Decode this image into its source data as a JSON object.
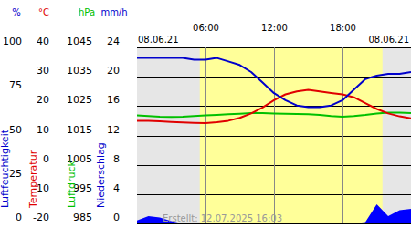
{
  "chart_data": {
    "type": "line",
    "date_left": "08.06.21",
    "date_right": "08.06.21",
    "created": "Erstellt: 12.07.2025 16:03",
    "x": [
      0,
      1,
      2,
      3,
      4,
      5,
      6,
      7,
      8,
      9,
      10,
      11,
      12,
      13,
      14,
      15,
      16,
      17,
      18,
      19,
      20,
      21,
      22,
      23,
      24
    ],
    "xlim": [
      0,
      24
    ],
    "xticks": [
      {
        "value": 6,
        "label": "06:00"
      },
      {
        "value": 12,
        "label": "12:00"
      },
      {
        "value": 18,
        "label": "18:00"
      }
    ],
    "daylight": [
      5.5,
      21.5
    ],
    "grid": true,
    "axes": [
      {
        "unit": "%",
        "label": "Luftfeuchtigkeit",
        "color": "#0000cc",
        "lim": [
          0,
          100
        ],
        "ticks": [
          100,
          75,
          50,
          25,
          0
        ]
      },
      {
        "unit": "°C",
        "label": "Temperatur",
        "color": "#e00000",
        "lim": [
          -20,
          40
        ],
        "ticks": [
          40,
          30,
          20,
          10,
          0,
          -10,
          -20
        ]
      },
      {
        "unit": "hPa",
        "label": "Luftdruck",
        "color": "#00c000",
        "lim": [
          985,
          1045
        ],
        "ticks": [
          1045,
          1035,
          1025,
          1015,
          1005,
          995,
          985
        ]
      },
      {
        "unit": "mm/h",
        "label": "Niederschlag",
        "color": "#0000cc",
        "lim": [
          0,
          24
        ],
        "ticks": [
          24,
          20,
          16,
          12,
          8,
          4,
          0
        ]
      }
    ],
    "series": [
      {
        "axis": 3,
        "type": "area",
        "color": "#0000ff",
        "values": [
          0.4,
          1.0,
          0.8,
          0.3,
          0,
          0,
          0,
          0,
          0,
          0,
          0,
          0,
          0,
          0,
          0,
          0,
          0,
          0,
          0,
          0,
          0.2,
          2.6,
          1.0,
          1.8,
          2.0
        ]
      },
      {
        "axis": 2,
        "type": "line",
        "color": "#00c000",
        "values": [
          1021.8,
          1021.6,
          1021.4,
          1021.3,
          1021.4,
          1021.6,
          1021.8,
          1022.0,
          1022.2,
          1022.4,
          1022.6,
          1022.6,
          1022.5,
          1022.4,
          1022.3,
          1022.2,
          1022.0,
          1021.6,
          1021.4,
          1021.6,
          1022.0,
          1022.5,
          1022.8,
          1022.8,
          1022.6
        ]
      },
      {
        "axis": 1,
        "type": "line",
        "color": "#e00000",
        "values": [
          15.0,
          15.0,
          14.8,
          14.6,
          14.4,
          14.3,
          14.2,
          14.5,
          15.0,
          16.0,
          17.5,
          19.5,
          22.0,
          24.0,
          25.0,
          25.5,
          25.0,
          24.5,
          24.0,
          23.0,
          21.0,
          19.0,
          17.5,
          16.5,
          15.8
        ]
      },
      {
        "axis": 0,
        "type": "line",
        "color": "#0000cc",
        "values": [
          94,
          94,
          94,
          94,
          94,
          93,
          93,
          94,
          92,
          90,
          86,
          80,
          74,
          70,
          67,
          66,
          66,
          67,
          70,
          76,
          82,
          84,
          85,
          85,
          86
        ]
      }
    ]
  }
}
